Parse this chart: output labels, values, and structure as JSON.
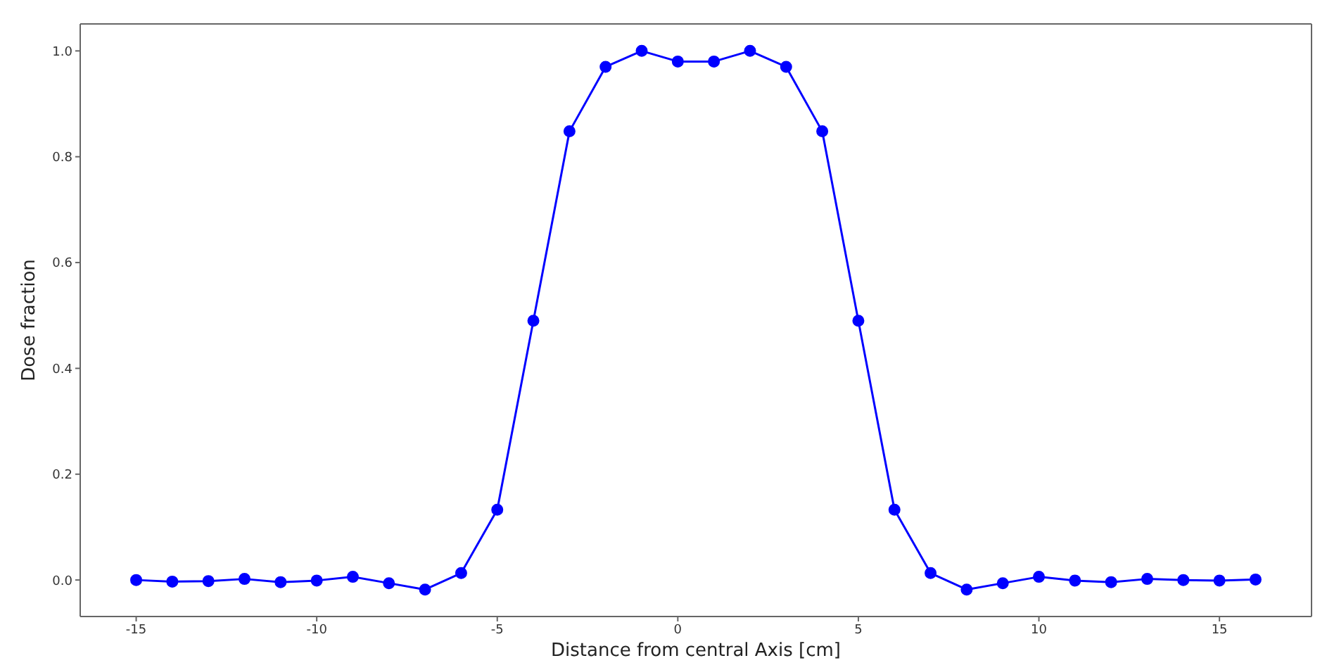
{
  "chart_data": {
    "type": "line",
    "xlabel": "Distance from central Axis [cm]",
    "ylabel": "Dose fraction",
    "x": [
      -15,
      -14,
      -13,
      -12,
      -11,
      -10,
      -9,
      -8,
      -7,
      -6,
      -5,
      -4,
      -3,
      -2,
      -1,
      0,
      1,
      2,
      3,
      4,
      5,
      6,
      7,
      8,
      9,
      10,
      11,
      12,
      13,
      14,
      15,
      16
    ],
    "series": [
      {
        "color": "#0000ff",
        "values": [
          0.0,
          -0.003,
          -0.002,
          0.002,
          -0.004,
          -0.001,
          0.006,
          -0.006,
          -0.018,
          0.013,
          0.133,
          0.49,
          0.848,
          0.97,
          1.0,
          0.98,
          0.98,
          1.0,
          0.97,
          0.848,
          0.49,
          0.133,
          0.013,
          -0.018,
          -0.006,
          0.006,
          -0.001,
          -0.004,
          0.002,
          0.0,
          -0.001,
          0.001
        ]
      }
    ],
    "xlim": [
      -16.55,
      17.55
    ],
    "xticks": [
      -15,
      -10,
      -5,
      0,
      5,
      10,
      15
    ],
    "ylim": [
      -0.069,
      1.051
    ],
    "yticks": [
      {
        "value": 0,
        "label": "0.0"
      },
      {
        "value": 0.2,
        "label": "0.2"
      },
      {
        "value": 0.4,
        "label": "0.4"
      },
      {
        "value": 0.6,
        "label": "0.6"
      },
      {
        "value": 0.8,
        "label": "0.8"
      },
      {
        "value": 1,
        "label": "1.0"
      }
    ],
    "grid": false,
    "legend": false,
    "marker": "circle",
    "line_style": "solid"
  }
}
